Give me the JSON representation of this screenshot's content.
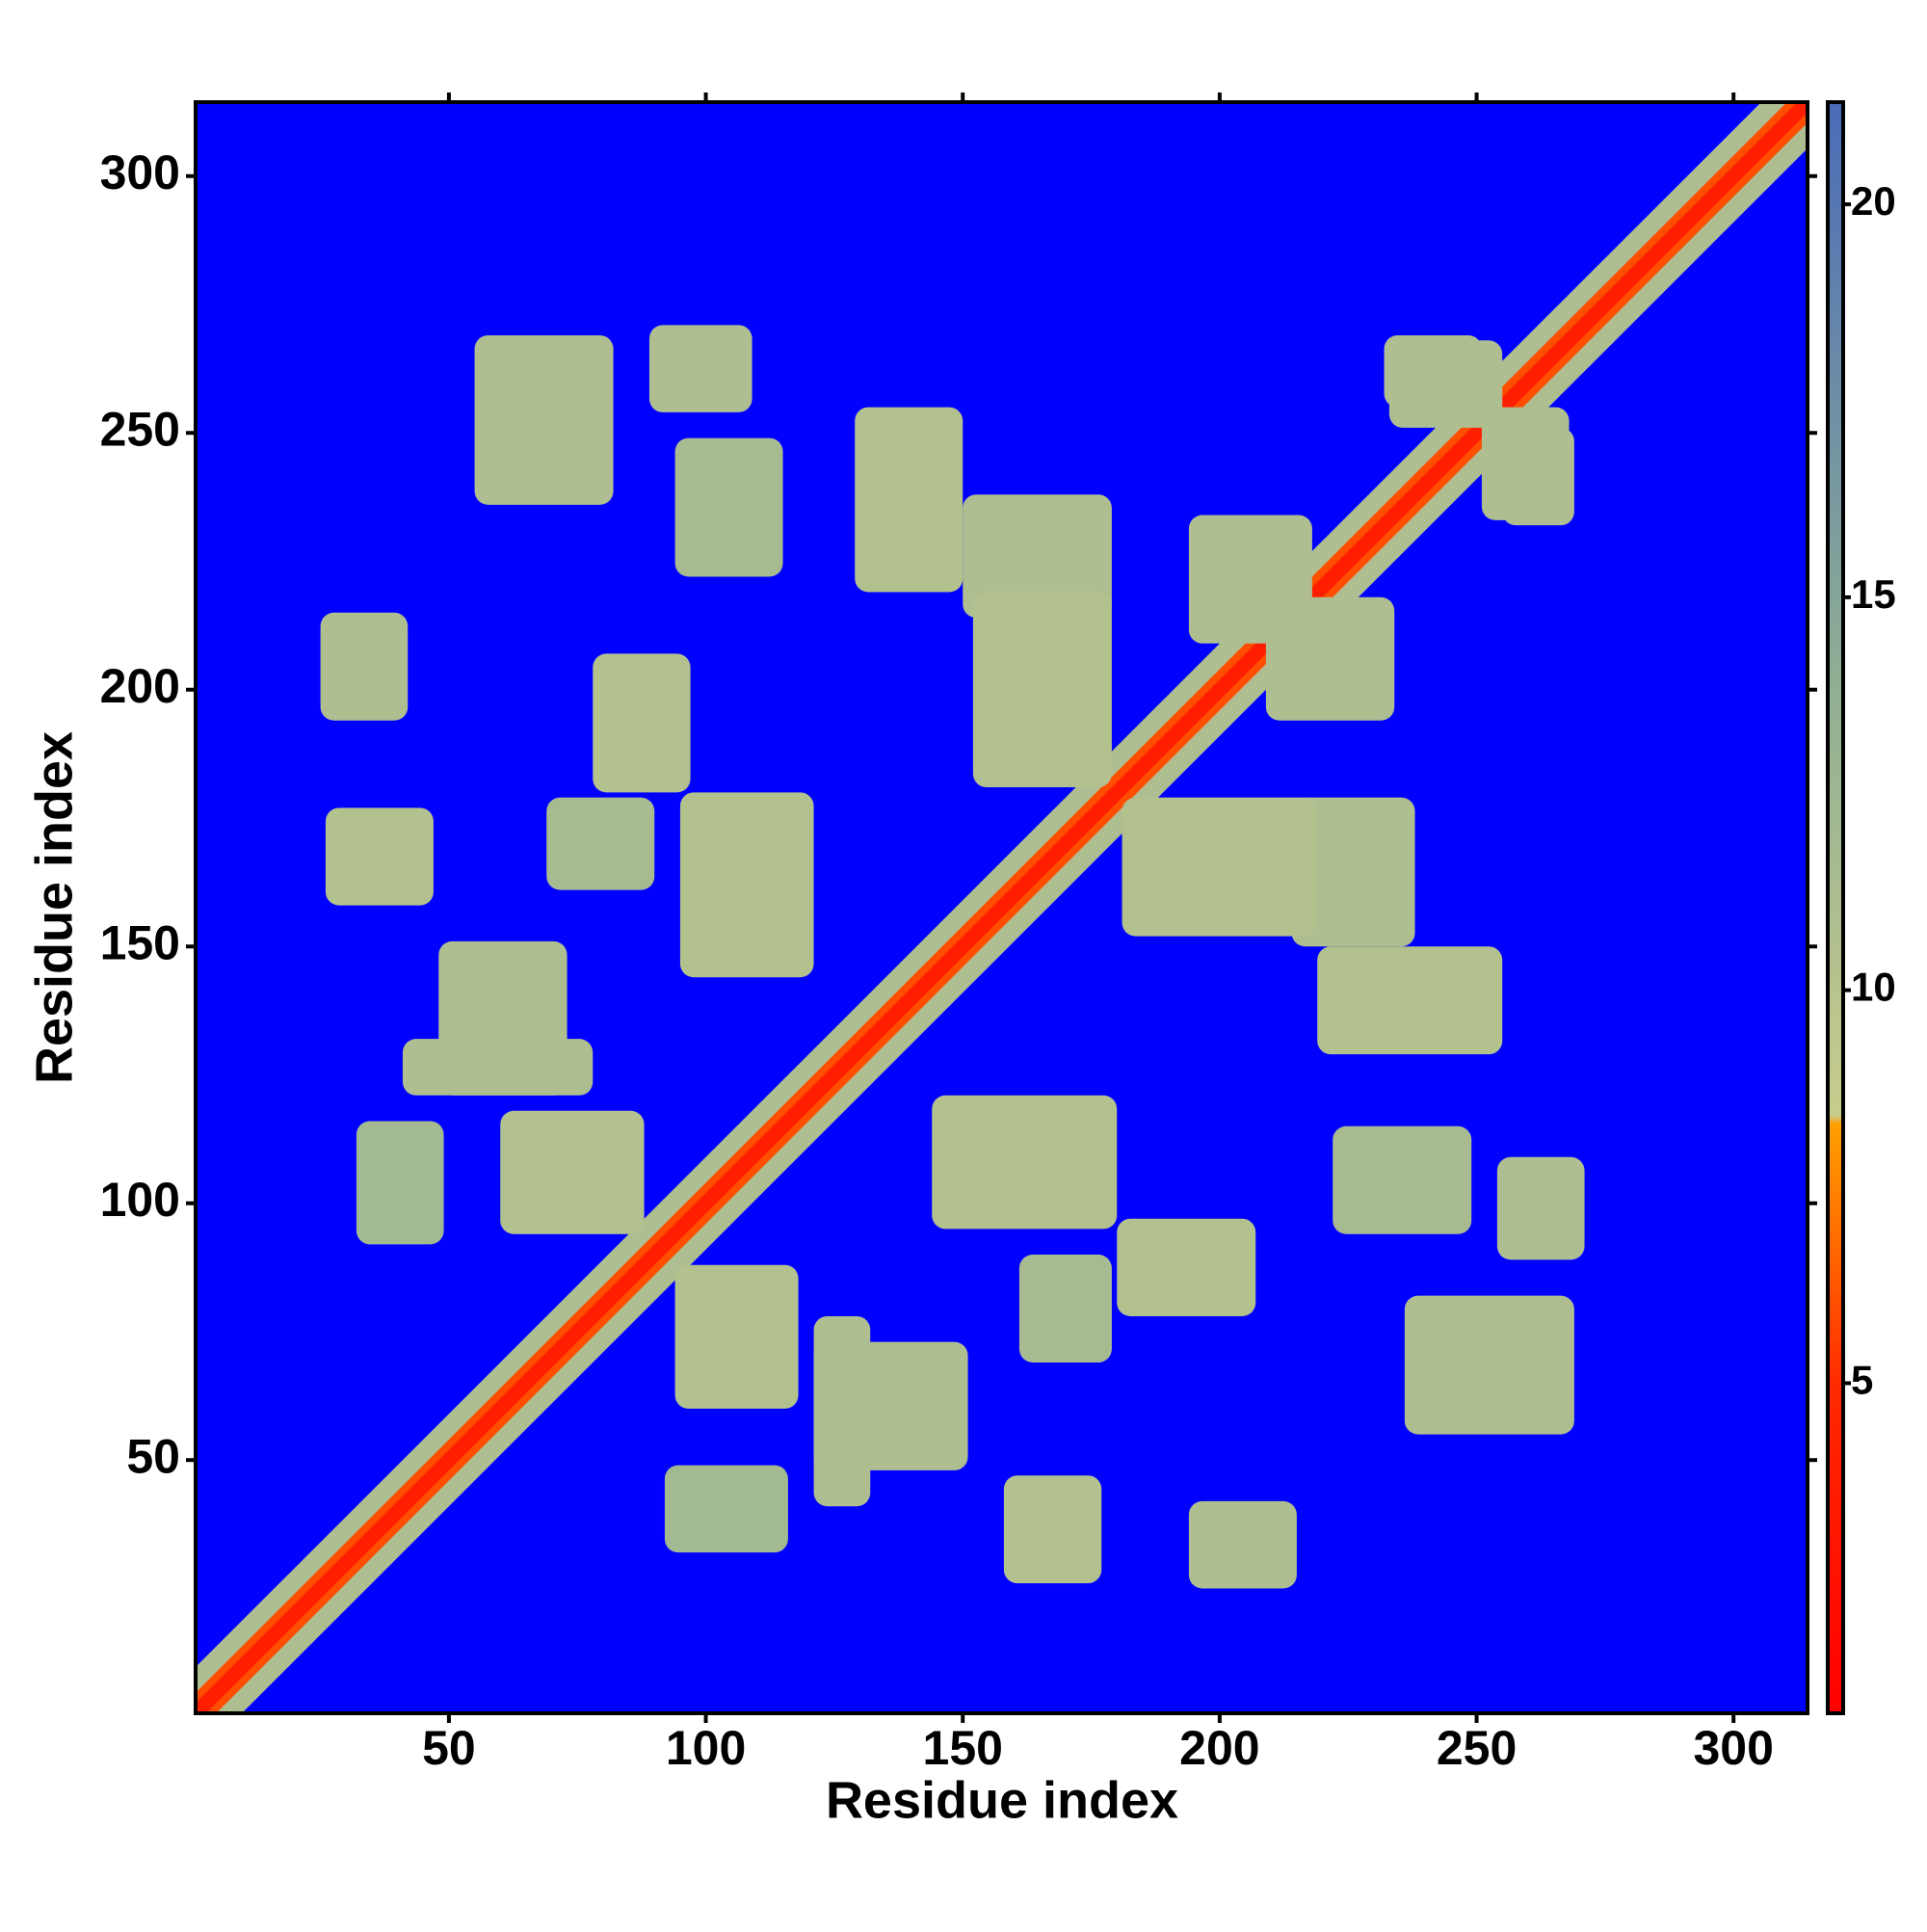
{
  "chart_data": {
    "type": "heatmap",
    "symmetric": true,
    "xlabel": "Residue index",
    "ylabel": "Residue index",
    "xlim": [
      0.7,
      314.4
    ],
    "ylim": [
      0.7,
      314.4
    ],
    "xticks": [
      50,
      100,
      150,
      200,
      250,
      300
    ],
    "yticks": [
      50,
      100,
      150,
      200,
      250,
      300
    ],
    "background_color": "#0000ff",
    "clim": [
      0.8,
      21.3
    ],
    "cticks": [
      5,
      10,
      15,
      20
    ],
    "colorscale": [
      {
        "value": 0.8,
        "color": "#ff0000"
      },
      {
        "value": 5,
        "color": "#ff2a00"
      },
      {
        "value": 8.3,
        "color": "#ffa000"
      },
      {
        "value": 8.4,
        "color": "#c8cc8c"
      },
      {
        "value": 14,
        "color": "#8fae94"
      },
      {
        "value": 21.3,
        "color": "#4a6cb8"
      }
    ],
    "diagonal_bands": [
      {
        "offset": 9,
        "value": 11
      },
      {
        "offset": 4,
        "value": 6
      },
      {
        "offset": 2,
        "value": 3.8
      }
    ],
    "regions": [
      {
        "x": [
          55,
          82
        ],
        "y": [
          236,
          269
        ],
        "value": 11
      },
      {
        "x": [
          89,
          109
        ],
        "y": [
          254,
          271
        ],
        "value": 11
      },
      {
        "x": [
          94,
          115
        ],
        "y": [
          222,
          249
        ],
        "value": 11.5
      },
      {
        "x": [
          25,
          42
        ],
        "y": [
          194,
          215
        ],
        "value": 11
      },
      {
        "x": [
          26,
          47
        ],
        "y": [
          158,
          177
        ],
        "value": 10.5
      },
      {
        "x": [
          78,
          97
        ],
        "y": [
          180,
          207
        ],
        "value": 10.5
      },
      {
        "x": [
          69,
          90
        ],
        "y": [
          161,
          179
        ],
        "value": 11.5
      },
      {
        "x": [
          95,
          121
        ],
        "y": [
          144,
          180
        ],
        "value": 10.5
      },
      {
        "x": [
          48,
          73
        ],
        "y": [
          121,
          151
        ],
        "value": 11
      },
      {
        "x": [
          41,
          78
        ],
        "y": [
          121,
          132
        ],
        "value": 11
      },
      {
        "x": [
          32,
          49
        ],
        "y": [
          92,
          116
        ],
        "value": 12
      },
      {
        "x": [
          60,
          88
        ],
        "y": [
          94,
          118
        ],
        "value": 10.5
      },
      {
        "x": [
          129,
          150
        ],
        "y": [
          219,
          255
        ],
        "value": 10.5
      },
      {
        "x": [
          150,
          179
        ],
        "y": [
          214,
          238
        ],
        "value": 11
      },
      {
        "x": [
          152,
          179
        ],
        "y": [
          181,
          219
        ],
        "value": 10.5
      },
      {
        "x": [
          194,
          218
        ],
        "y": [
          209,
          234
        ],
        "value": 11
      },
      {
        "x": [
          232,
          251
        ],
        "y": [
          255,
          269
        ],
        "value": 11
      },
      {
        "x": [
          251,
          268
        ],
        "y": [
          233,
          255
        ],
        "value": 11
      }
    ]
  }
}
